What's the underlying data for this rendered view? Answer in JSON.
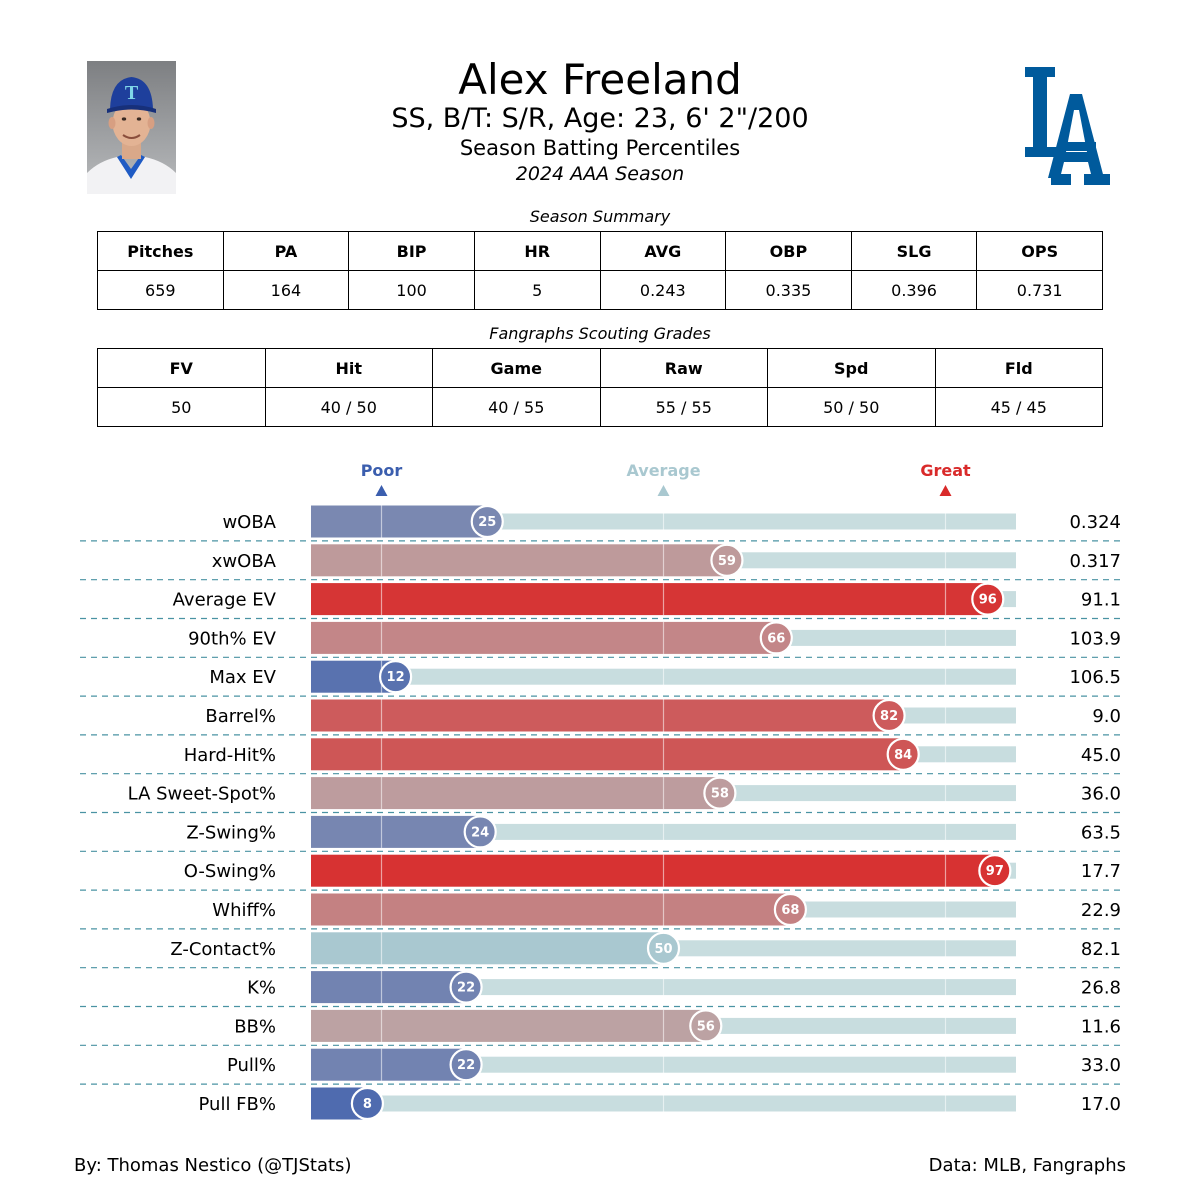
{
  "player": {
    "name": "Alex Freeland",
    "info": "SS, B/T: S/R, Age: 23, 6' 2\"/200",
    "subtitle": "Season Batting Percentiles",
    "season": "2024 AAA Season",
    "photo_logo_letter": "T"
  },
  "team_logo": {
    "text": "LA",
    "color": "#005A9C"
  },
  "season_summary": {
    "title": "Season Summary",
    "headers": [
      "Pitches",
      "PA",
      "BIP",
      "HR",
      "AVG",
      "OBP",
      "SLG",
      "OPS"
    ],
    "values": [
      "659",
      "164",
      "100",
      "5",
      "0.243",
      "0.335",
      "0.396",
      "0.731"
    ]
  },
  "scouting": {
    "title": "Fangraphs Scouting Grades",
    "headers": [
      "FV",
      "Hit",
      "Game",
      "Raw",
      "Spd",
      "Fld"
    ],
    "values": [
      "50",
      "40 / 50",
      "40 / 55",
      "55 / 55",
      "50 / 50",
      "45 / 45"
    ]
  },
  "chart_data": {
    "type": "bar",
    "orientation": "horizontal",
    "xlim": [
      0,
      100
    ],
    "markers": [
      {
        "label": "Poor",
        "value": 10,
        "color": "#3B5EAE"
      },
      {
        "label": "Average",
        "value": 50,
        "color": "#A9C8D0"
      },
      {
        "label": "Great",
        "value": 90,
        "color": "#D92A2A"
      }
    ],
    "track_color": "#C8DDDF",
    "metrics": [
      {
        "name": "wOBA",
        "percentile": 25,
        "value": "0.324"
      },
      {
        "name": "xwOBA",
        "percentile": 59,
        "value": "0.317"
      },
      {
        "name": "Average EV",
        "percentile": 96,
        "value": "91.1"
      },
      {
        "name": "90th% EV",
        "percentile": 66,
        "value": "103.9"
      },
      {
        "name": "Max EV",
        "percentile": 12,
        "value": "106.5"
      },
      {
        "name": "Barrel%",
        "percentile": 82,
        "value": "9.0"
      },
      {
        "name": "Hard-Hit%",
        "percentile": 84,
        "value": "45.0"
      },
      {
        "name": "LA Sweet-Spot%",
        "percentile": 58,
        "value": "36.0"
      },
      {
        "name": "Z-Swing%",
        "percentile": 24,
        "value": "63.5"
      },
      {
        "name": "O-Swing%",
        "percentile": 97,
        "value": "17.7"
      },
      {
        "name": "Whiff%",
        "percentile": 68,
        "value": "22.9"
      },
      {
        "name": "Z-Contact%",
        "percentile": 50,
        "value": "82.1"
      },
      {
        "name": "K%",
        "percentile": 22,
        "value": "26.8"
      },
      {
        "name": "BB%",
        "percentile": 56,
        "value": "11.6"
      },
      {
        "name": "Pull%",
        "percentile": 22,
        "value": "33.0"
      },
      {
        "name": "Pull FB%",
        "percentile": 8,
        "value": "17.0"
      }
    ]
  },
  "footer": {
    "left": "By: Thomas Nestico (@TJStats)",
    "right": "Data: MLB, Fangraphs"
  }
}
